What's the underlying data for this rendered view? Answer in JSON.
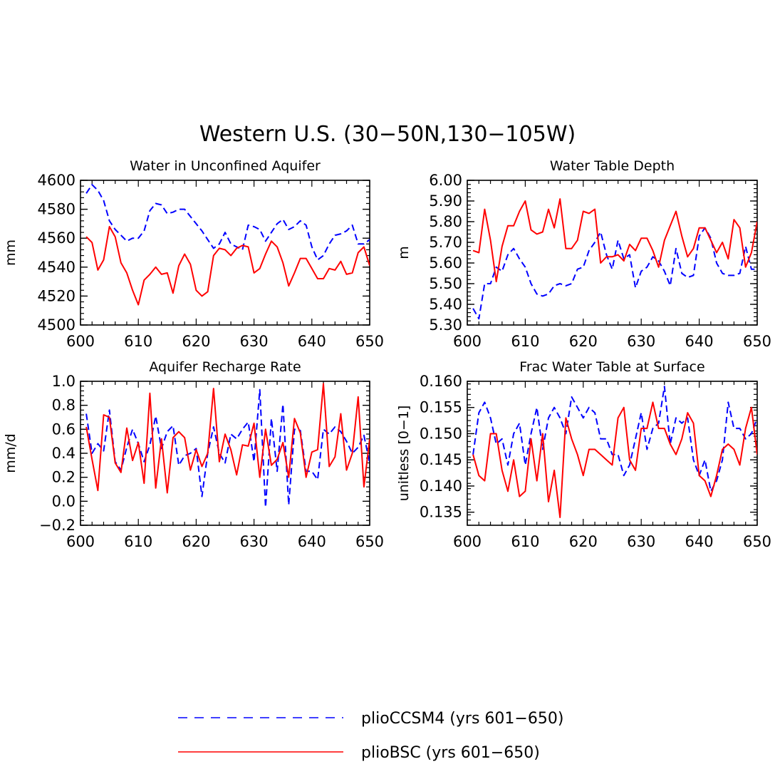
{
  "figure": {
    "title": "Western U.S. (30−50N,130−105W)"
  },
  "legend": {
    "items": [
      {
        "label": "plioCCSM4 (yrs 601−650)",
        "color": "#0000ff",
        "dash": "dashed"
      },
      {
        "label": "plioBSC (yrs 601−650)",
        "color": "#ff0000",
        "dash": "solid"
      }
    ]
  },
  "chart_data": [
    {
      "type": "line",
      "title": "Water in Unconfined Aquifer",
      "ylabel": "mm",
      "xlim": [
        600,
        650
      ],
      "ylim": [
        4500,
        4600
      ],
      "xticks": [
        600,
        610,
        620,
        630,
        640,
        650
      ],
      "yticks": [
        4500,
        4520,
        4540,
        4560,
        4580,
        4600
      ],
      "ytick_labels": [
        "4500",
        "4520",
        "4540",
        "4560",
        "4580",
        "4600"
      ],
      "x": [
        601,
        602,
        603,
        604,
        605,
        606,
        607,
        608,
        609,
        610,
        611,
        612,
        613,
        614,
        615,
        616,
        617,
        618,
        619,
        620,
        621,
        622,
        623,
        624,
        625,
        626,
        627,
        628,
        629,
        630,
        631,
        632,
        633,
        634,
        635,
        636,
        637,
        638,
        639,
        640,
        641,
        642,
        643,
        644,
        645,
        646,
        647,
        648,
        649,
        650
      ],
      "series": [
        {
          "name": "plioCCSM4 (yrs 601−650)",
          "color": "#0000ff",
          "dash": "dashed",
          "values": [
            4591,
            4597,
            4593,
            4586,
            4572,
            4566,
            4562,
            4558,
            4560,
            4560,
            4565,
            4579,
            4584,
            4583,
            4577,
            4578,
            4580,
            4580,
            4575,
            4570,
            4565,
            4559,
            4553,
            4556,
            4564,
            4556,
            4554,
            4552,
            4569,
            4568,
            4566,
            4558,
            4564,
            4570,
            4573,
            4566,
            4568,
            4572,
            4569,
            4554,
            4545,
            4548,
            4556,
            4562,
            4563,
            4565,
            4569,
            4556,
            4556,
            4559
          ]
        },
        {
          "name": "plioBSC (yrs 601−650)",
          "color": "#ff0000",
          "dash": "solid",
          "values": [
            4561,
            4557,
            4538,
            4545,
            4568,
            4561,
            4543,
            4536,
            4524,
            4514,
            4531,
            4535,
            4540,
            4535,
            4536,
            4522,
            4541,
            4549,
            4542,
            4524,
            4520,
            4523,
            4548,
            4553,
            4552,
            4548,
            4553,
            4555,
            4554,
            4536,
            4539,
            4549,
            4558,
            4554,
            4543,
            4527,
            4536,
            4546,
            4546,
            4539,
            4532,
            4532,
            4539,
            4538,
            4544,
            4535,
            4536,
            4550,
            4554,
            4541
          ]
        }
      ]
    },
    {
      "type": "line",
      "title": "Water Table Depth",
      "ylabel": "m",
      "xlim": [
        600,
        650
      ],
      "ylim": [
        5.3,
        6.0
      ],
      "xticks": [
        600,
        610,
        620,
        630,
        640,
        650
      ],
      "yticks": [
        5.3,
        5.4,
        5.5,
        5.6,
        5.7,
        5.8,
        5.9,
        6.0
      ],
      "ytick_labels": [
        "5.30",
        "5.40",
        "5.50",
        "5.60",
        "5.70",
        "5.80",
        "5.90",
        "6.00"
      ],
      "x": [
        601,
        602,
        603,
        604,
        605,
        606,
        607,
        608,
        609,
        610,
        611,
        612,
        613,
        614,
        615,
        616,
        617,
        618,
        619,
        620,
        621,
        622,
        623,
        624,
        625,
        626,
        627,
        628,
        629,
        630,
        631,
        632,
        633,
        634,
        635,
        636,
        637,
        638,
        639,
        640,
        641,
        642,
        643,
        644,
        645,
        646,
        647,
        648,
        649,
        650
      ],
      "series": [
        {
          "name": "plioCCSM4 (yrs 601−650)",
          "color": "#0000ff",
          "dash": "dashed",
          "values": [
            5.38,
            5.33,
            5.5,
            5.5,
            5.58,
            5.56,
            5.64,
            5.67,
            5.62,
            5.58,
            5.5,
            5.45,
            5.44,
            5.45,
            5.49,
            5.5,
            5.49,
            5.5,
            5.57,
            5.58,
            5.66,
            5.7,
            5.75,
            5.64,
            5.57,
            5.71,
            5.62,
            5.64,
            5.48,
            5.56,
            5.58,
            5.63,
            5.61,
            5.56,
            5.49,
            5.67,
            5.55,
            5.53,
            5.54,
            5.73,
            5.77,
            5.72,
            5.6,
            5.55,
            5.54,
            5.54,
            5.55,
            5.68,
            5.57,
            5.57
          ]
        },
        {
          "name": "plioBSC (yrs 601−650)",
          "color": "#ff0000",
          "dash": "solid",
          "values": [
            5.66,
            5.65,
            5.86,
            5.71,
            5.51,
            5.68,
            5.78,
            5.78,
            5.85,
            5.9,
            5.76,
            5.74,
            5.75,
            5.86,
            5.77,
            5.91,
            5.67,
            5.67,
            5.71,
            5.85,
            5.84,
            5.86,
            5.6,
            5.63,
            5.63,
            5.64,
            5.61,
            5.69,
            5.66,
            5.72,
            5.72,
            5.66,
            5.58,
            5.71,
            5.78,
            5.85,
            5.73,
            5.63,
            5.67,
            5.77,
            5.77,
            5.71,
            5.65,
            5.7,
            5.62,
            5.81,
            5.77,
            5.58,
            5.65,
            5.8
          ]
        }
      ]
    },
    {
      "type": "line",
      "title": "Aquifer Recharge Rate",
      "ylabel": "mm/d",
      "xlim": [
        600,
        650
      ],
      "ylim": [
        -0.2,
        1.0
      ],
      "xticks": [
        600,
        610,
        620,
        630,
        640,
        650
      ],
      "yticks": [
        -0.2,
        0.0,
        0.2,
        0.4,
        0.6,
        0.8,
        1.0
      ],
      "ytick_labels": [
        "−0.2",
        "0.0",
        "0.2",
        "0.4",
        "0.6",
        "0.8",
        "1.0"
      ],
      "x": [
        601,
        602,
        603,
        604,
        605,
        606,
        607,
        608,
        609,
        610,
        611,
        612,
        613,
        614,
        615,
        616,
        617,
        618,
        619,
        620,
        621,
        622,
        623,
        624,
        625,
        626,
        627,
        628,
        629,
        630,
        631,
        632,
        633,
        634,
        635,
        636,
        637,
        638,
        639,
        640,
        641,
        642,
        643,
        644,
        645,
        646,
        647,
        648,
        649,
        650
      ],
      "series": [
        {
          "name": "plioCCSM4 (yrs 601−650)",
          "color": "#0000ff",
          "dash": "dashed",
          "values": [
            0.73,
            0.4,
            0.48,
            0.42,
            0.76,
            0.33,
            0.26,
            0.45,
            0.6,
            0.48,
            0.33,
            0.47,
            0.71,
            0.44,
            0.58,
            0.63,
            0.3,
            0.38,
            0.4,
            0.44,
            0.04,
            0.4,
            0.62,
            0.4,
            0.32,
            0.56,
            0.52,
            0.6,
            0.66,
            0.33,
            0.93,
            -0.05,
            0.69,
            0.25,
            0.81,
            -0.03,
            0.6,
            0.59,
            0.25,
            0.25,
            0.18,
            0.6,
            0.56,
            0.62,
            0.58,
            0.5,
            0.4,
            0.45,
            0.55,
            0.32
          ]
        },
        {
          "name": "plioBSC (yrs 601−650)",
          "color": "#ff0000",
          "dash": "solid",
          "values": [
            0.62,
            0.35,
            0.09,
            0.72,
            0.7,
            0.32,
            0.24,
            0.61,
            0.34,
            0.49,
            0.15,
            0.9,
            0.11,
            0.52,
            0.07,
            0.53,
            0.58,
            0.53,
            0.26,
            0.43,
            0.29,
            0.4,
            0.94,
            0.33,
            0.56,
            0.43,
            0.22,
            0.47,
            0.46,
            0.65,
            0.2,
            0.6,
            0.3,
            0.35,
            0.49,
            0.2,
            0.69,
            0.57,
            0.2,
            0.41,
            0.43,
            0.98,
            0.29,
            0.37,
            0.73,
            0.26,
            0.4,
            0.87,
            0.12,
            0.52
          ]
        }
      ]
    },
    {
      "type": "line",
      "title": "Frac Water Table at Surface",
      "ylabel": "unitless [0−1]",
      "xlim": [
        600,
        650
      ],
      "ylim": [
        0.1325,
        0.16
      ],
      "xticks": [
        600,
        610,
        620,
        630,
        640,
        650
      ],
      "yticks": [
        0.135,
        0.14,
        0.145,
        0.15,
        0.155,
        0.16
      ],
      "ytick_labels": [
        "0.135",
        "0.140",
        "0.145",
        "0.150",
        "0.155",
        "0.160"
      ],
      "x": [
        601,
        602,
        603,
        604,
        605,
        606,
        607,
        608,
        609,
        610,
        611,
        612,
        613,
        614,
        615,
        616,
        617,
        618,
        619,
        620,
        621,
        622,
        623,
        624,
        625,
        626,
        627,
        628,
        629,
        630,
        631,
        632,
        633,
        634,
        635,
        636,
        637,
        638,
        639,
        640,
        641,
        642,
        643,
        644,
        645,
        646,
        647,
        648,
        649,
        650
      ],
      "series": [
        {
          "name": "plioCCSM4 (yrs 601−650)",
          "color": "#0000ff",
          "dash": "dashed",
          "values": [
            0.146,
            0.154,
            0.156,
            0.153,
            0.148,
            0.149,
            0.144,
            0.15,
            0.152,
            0.144,
            0.15,
            0.155,
            0.147,
            0.153,
            0.155,
            0.153,
            0.15,
            0.157,
            0.155,
            0.153,
            0.155,
            0.154,
            0.149,
            0.149,
            0.146,
            0.146,
            0.142,
            0.144,
            0.149,
            0.154,
            0.147,
            0.151,
            0.152,
            0.159,
            0.148,
            0.153,
            0.152,
            0.153,
            0.145,
            0.142,
            0.145,
            0.139,
            0.141,
            0.145,
            0.156,
            0.151,
            0.151,
            0.149,
            0.15,
            0.153
          ]
        },
        {
          "name": "plioBSC (yrs 601−650)",
          "color": "#ff0000",
          "dash": "solid",
          "values": [
            0.146,
            0.142,
            0.141,
            0.15,
            0.15,
            0.143,
            0.139,
            0.145,
            0.138,
            0.139,
            0.149,
            0.141,
            0.15,
            0.137,
            0.143,
            0.134,
            0.153,
            0.149,
            0.146,
            0.142,
            0.147,
            0.147,
            0.146,
            0.145,
            0.144,
            0.153,
            0.155,
            0.145,
            0.143,
            0.151,
            0.151,
            0.156,
            0.151,
            0.151,
            0.148,
            0.146,
            0.149,
            0.154,
            0.152,
            0.142,
            0.141,
            0.138,
            0.142,
            0.147,
            0.148,
            0.147,
            0.144,
            0.151,
            0.155,
            0.146
          ]
        }
      ]
    }
  ]
}
